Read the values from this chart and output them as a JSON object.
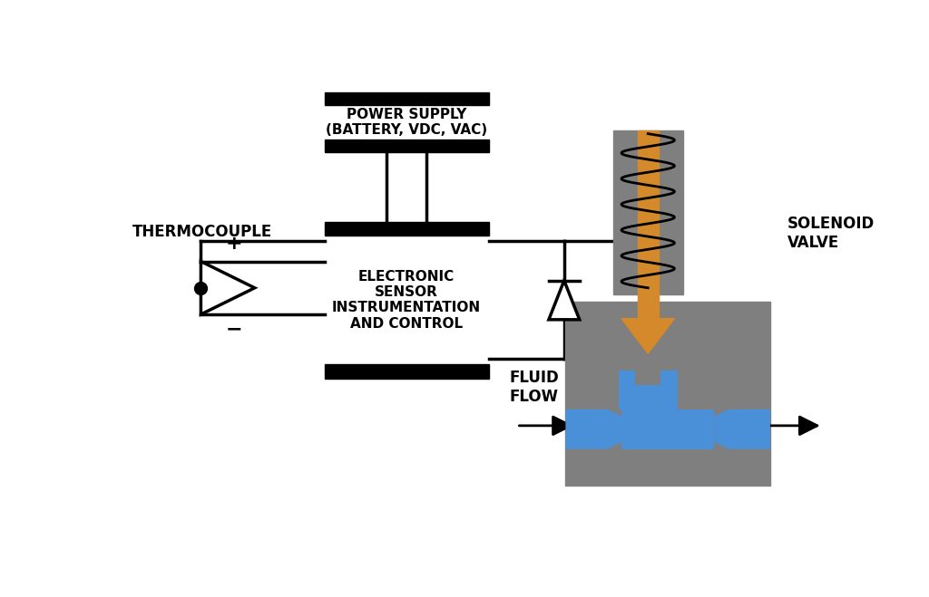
{
  "bg_color": "#ffffff",
  "gray_color": "#7f7f7f",
  "orange_color": "#D4892A",
  "blue_color": "#4a90d9",
  "black_color": "#000000",
  "power_supply_label": "POWER SUPPLY\n(BATTERY, VDC, VAC)",
  "control_label": "ELECTRONIC\nSENSOR\nINSTRUMENTATION\nAND CONTROL",
  "thermocouple_label": "THERMOCOUPLE",
  "solenoid_label": "SOLENOID\nVALVE",
  "fluid_flow_label": "FLUID\nFLOW"
}
